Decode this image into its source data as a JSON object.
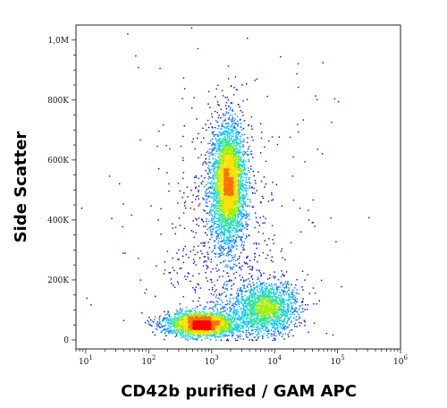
{
  "chart_data": {
    "type": "scatter",
    "plot_style": "flow cytometry density dot plot (pseudocolor)",
    "xlabel": "CD42b purified / GAM APC",
    "ylabel": "Side Scatter",
    "x_scale": "log",
    "xlim": [
      7,
      1000000
    ],
    "ylim": [
      -30000,
      1050000
    ],
    "x_ticks": [
      {
        "value": 10,
        "base": "10",
        "exp": "1"
      },
      {
        "value": 100,
        "base": "10",
        "exp": "2"
      },
      {
        "value": 1000,
        "base": "10",
        "exp": "3"
      },
      {
        "value": 10000,
        "base": "10",
        "exp": "4"
      },
      {
        "value": 100000,
        "base": "10",
        "exp": "5"
      },
      {
        "value": 1000000,
        "base": "10",
        "exp": "6"
      }
    ],
    "y_ticks": [
      {
        "value": 0,
        "label": "0"
      },
      {
        "value": 200000,
        "label": "200K"
      },
      {
        "value": 400000,
        "label": "400K"
      },
      {
        "value": 600000,
        "label": "600K"
      },
      {
        "value": 800000,
        "label": "800K"
      },
      {
        "value": 1000000,
        "label": "1,0M"
      }
    ],
    "populations": [
      {
        "name": "",
        "center_x": 1800,
        "center_y": 530000,
        "spread_log_x": 0.13,
        "spread_y": 95000,
        "weight": 0.4
      },
      {
        "name": "",
        "center_x": 650,
        "center_y": 55000,
        "spread_log_x": 0.28,
        "spread_y": 20000,
        "weight": 0.28
      },
      {
        "name": "",
        "center_x": 7000,
        "center_y": 105000,
        "spread_log_x": 0.25,
        "spread_y": 45000,
        "weight": 0.2
      },
      {
        "name": "",
        "center_x": 1500,
        "center_y": 300000,
        "spread_log_x": 0.35,
        "spread_y": 220000,
        "weight": 0.08
      },
      {
        "name": "",
        "center_x": 2000,
        "center_y": 300000,
        "spread_log_x": 0.9,
        "spread_y": 350000,
        "weight": 0.04
      }
    ],
    "density_colors": [
      "#0000cc",
      "#0070ff",
      "#00c8ff",
      "#30e0a0",
      "#a0f000",
      "#ffe000",
      "#ff7000",
      "#ff0000"
    ],
    "grid": false,
    "legend": "none"
  }
}
